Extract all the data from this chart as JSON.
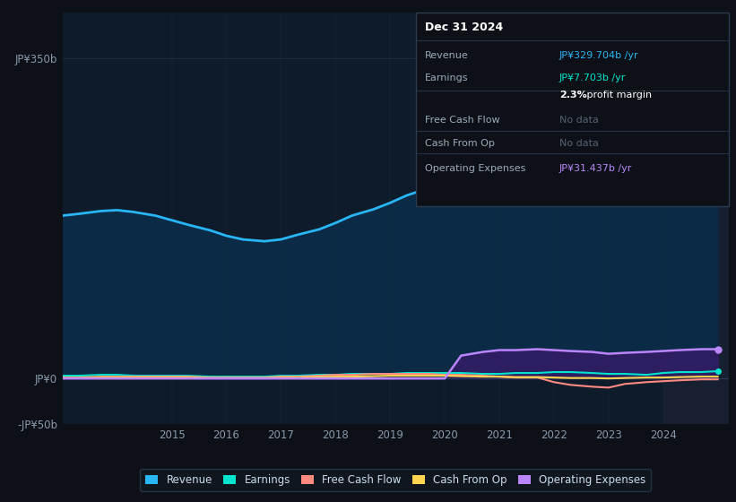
{
  "bg_color": "#0d1117",
  "chart_bg": "#0d1b2a",
  "grid_color": "#1e2d40",
  "years": [
    2013.0,
    2013.3,
    2013.7,
    2014.0,
    2014.3,
    2014.7,
    2015.0,
    2015.3,
    2015.7,
    2016.0,
    2016.3,
    2016.7,
    2017.0,
    2017.3,
    2017.7,
    2018.0,
    2018.3,
    2018.7,
    2019.0,
    2019.3,
    2019.7,
    2020.0,
    2020.3,
    2020.7,
    2021.0,
    2021.3,
    2021.7,
    2022.0,
    2022.3,
    2022.7,
    2023.0,
    2023.3,
    2023.7,
    2024.0,
    2024.3,
    2024.7,
    2025.0
  ],
  "revenue": [
    178,
    180,
    183,
    184,
    182,
    178,
    173,
    168,
    162,
    156,
    152,
    150,
    152,
    157,
    163,
    170,
    178,
    185,
    192,
    200,
    208,
    213,
    214,
    213,
    210,
    212,
    218,
    224,
    238,
    258,
    282,
    308,
    300,
    293,
    305,
    320,
    335
  ],
  "earnings": [
    3,
    3,
    4,
    4,
    3,
    3,
    3,
    3,
    2,
    2,
    2,
    2,
    3,
    3,
    4,
    4,
    5,
    5,
    5,
    6,
    6,
    6,
    6,
    5,
    5,
    6,
    6,
    7,
    7,
    6,
    5,
    5,
    4,
    6,
    7,
    7,
    8
  ],
  "free_cash_flow": [
    1,
    1,
    2,
    2,
    2,
    2,
    2,
    2,
    1,
    1,
    1,
    1,
    2,
    2,
    3,
    4,
    4,
    5,
    5,
    5,
    5,
    4,
    4,
    3,
    2,
    1,
    1,
    -4,
    -7,
    -9,
    -10,
    -6,
    -4,
    -3,
    -2,
    -1,
    -1
  ],
  "cash_from_op": [
    0.5,
    0.5,
    1,
    1,
    1,
    1,
    1,
    1,
    0.5,
    0.5,
    0.5,
    0.5,
    1,
    1,
    1.5,
    2,
    2,
    2.5,
    3,
    3,
    3,
    3,
    2.5,
    2,
    2,
    1.5,
    1.5,
    1,
    0.5,
    0.5,
    0,
    0.5,
    1,
    1,
    1.5,
    2,
    2
  ],
  "op_expenses": [
    0,
    0,
    0,
    0,
    0,
    0,
    0,
    0,
    0,
    0,
    0,
    0,
    0,
    0,
    0,
    0,
    0,
    0,
    0,
    0,
    0,
    0,
    25,
    29,
    31,
    31,
    32,
    31,
    30,
    29,
    27,
    28,
    29,
    30,
    31,
    32,
    32
  ],
  "revenue_color": "#29b6f6",
  "earnings_color": "#00e5cc",
  "fcf_color": "#ff8a80",
  "cfo_color": "#ffd54f",
  "opex_color": "#bb86fc",
  "revenue_fill": "#0a2a45",
  "opex_fill": "#3d1a6e",
  "ylim": [
    -50,
    400
  ],
  "yticks": [
    -50,
    0,
    350
  ],
  "ytick_labels": [
    "-JP¥50b",
    "JP¥0",
    "JP¥350b"
  ],
  "xticks": [
    2015,
    2016,
    2017,
    2018,
    2019,
    2020,
    2021,
    2022,
    2023,
    2024
  ],
  "highlight_x_start": 2024.0,
  "highlight_color": "#162030",
  "legend": [
    {
      "label": "Revenue",
      "color": "#29b6f6"
    },
    {
      "label": "Earnings",
      "color": "#00e5cc"
    },
    {
      "label": "Free Cash Flow",
      "color": "#ff8a80"
    },
    {
      "label": "Cash From Op",
      "color": "#ffd54f"
    },
    {
      "label": "Operating Expenses",
      "color": "#bb86fc"
    }
  ],
  "infobox": {
    "date": "Dec 31 2024",
    "rows": [
      {
        "label": "Revenue",
        "value": "JP¥329.704b /yr",
        "value_color": "#29b6f6"
      },
      {
        "label": "Earnings",
        "value": "JP¥7.703b /yr",
        "value_color": "#00e5cc"
      },
      {
        "label": "",
        "value": "",
        "value_color": "white",
        "extra": "2.3% profit margin"
      },
      {
        "label": "Free Cash Flow",
        "value": "No data",
        "value_color": "#556070"
      },
      {
        "label": "Cash From Op",
        "value": "No data",
        "value_color": "#556070"
      },
      {
        "label": "Operating Expenses",
        "value": "JP¥31.437b /yr",
        "value_color": "#bb86fc"
      }
    ]
  }
}
